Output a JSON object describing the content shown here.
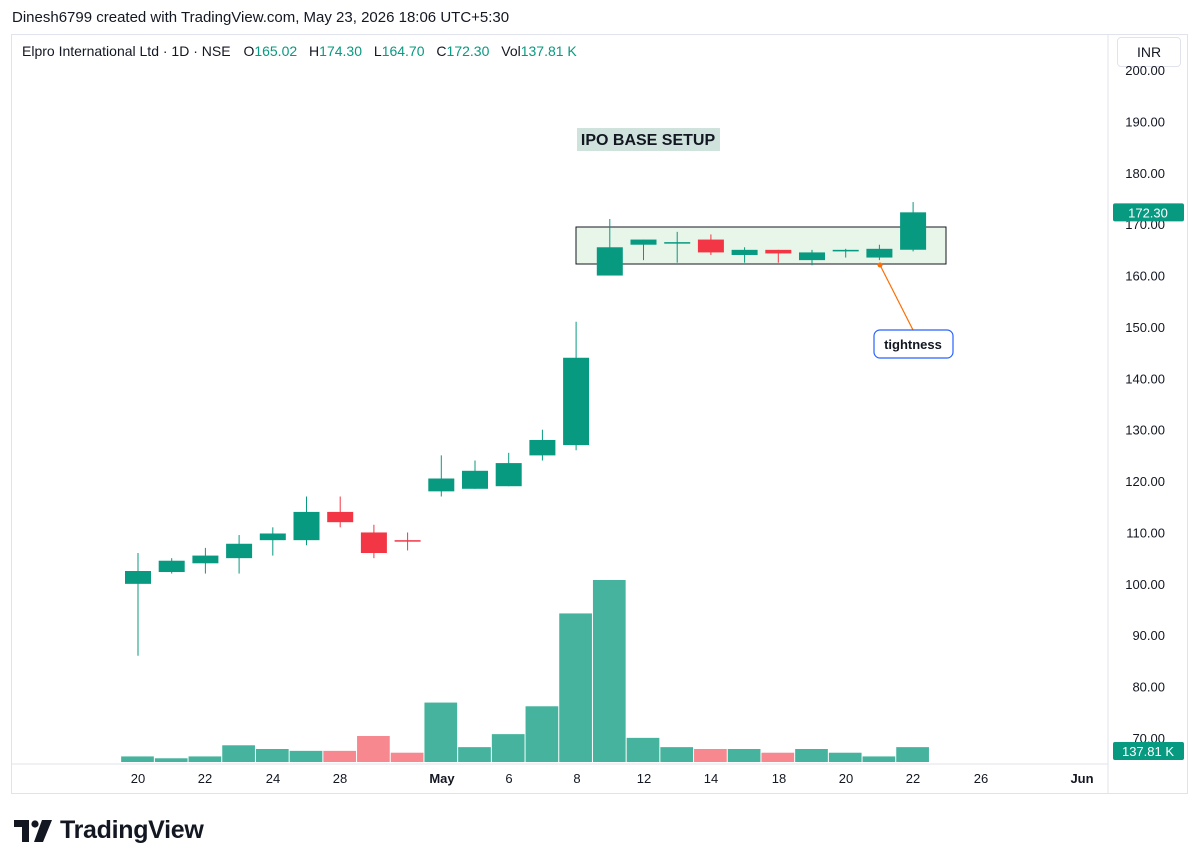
{
  "header": {
    "attribution": "Dinesh6799 created with TradingView.com, May 23, 2026 18:06 UTC+5:30"
  },
  "legend": {
    "symbol": "Elpro International Ltd · 1D · NSE",
    "o_label": "O",
    "o_value": "165.02",
    "h_label": "H",
    "h_value": "174.30",
    "l_label": "L",
    "l_value": "164.70",
    "c_label": "C",
    "c_value": "172.30",
    "vol_label": "Vol",
    "vol_value": "137.81 K"
  },
  "currency_button": "INR",
  "brand": {
    "name": "TradingView"
  },
  "colors": {
    "up": "#089981",
    "down": "#f23645",
    "vol_up": "#45b39d",
    "vol_down": "#f7888f",
    "box_fill": "#e8f5e9"
  },
  "chart_data": {
    "type": "candlestick",
    "y_ticks": [
      "200.00",
      "190.00",
      "180.00",
      "170.00",
      "160.00",
      "150.00",
      "140.00",
      "130.00",
      "120.00",
      "110.00",
      "100.00",
      "90.00",
      "80.00",
      "70.00"
    ],
    "x_ticks": [
      "20",
      "22",
      "24",
      "28",
      "May",
      "6",
      "8",
      "12",
      "14",
      "18",
      "20",
      "22",
      "26",
      "Jun"
    ],
    "ylim": [
      70,
      200
    ],
    "candles": [
      {
        "o": 100.0,
        "h": 106.0,
        "l": 86.0,
        "c": 102.5,
        "v": 3
      },
      {
        "o": 102.3,
        "h": 105.0,
        "l": 102.0,
        "c": 104.5,
        "v": 2
      },
      {
        "o": 104.0,
        "h": 107.0,
        "l": 102.0,
        "c": 105.5,
        "v": 3
      },
      {
        "o": 105.0,
        "h": 109.5,
        "l": 102.0,
        "c": 107.8,
        "v": 9
      },
      {
        "o": 108.5,
        "h": 111.0,
        "l": 105.5,
        "c": 109.8,
        "v": 7
      },
      {
        "o": 108.5,
        "h": 117.0,
        "l": 107.5,
        "c": 114.0,
        "v": 6
      },
      {
        "o": 114.0,
        "h": 117.0,
        "l": 111.0,
        "c": 112.0,
        "v": 6
      },
      {
        "o": 110.0,
        "h": 111.5,
        "l": 105.0,
        "c": 106.0,
        "v": 14
      },
      {
        "o": 108.5,
        "h": 110.0,
        "l": 106.5,
        "c": 108.3,
        "v": 5
      },
      {
        "o": 118.0,
        "h": 125.0,
        "l": 117.0,
        "c": 120.5,
        "v": 32
      },
      {
        "o": 118.5,
        "h": 124.0,
        "l": 118.5,
        "c": 122.0,
        "v": 8
      },
      {
        "o": 119.0,
        "h": 125.5,
        "l": 119.0,
        "c": 123.5,
        "v": 15
      },
      {
        "o": 125.0,
        "h": 130.0,
        "l": 124.0,
        "c": 128.0,
        "v": 30
      },
      {
        "o": 127.0,
        "h": 151.0,
        "l": 126.0,
        "c": 144.0,
        "v": 80
      },
      {
        "o": 160.0,
        "h": 171.0,
        "l": 160.0,
        "c": 165.5,
        "v": 98
      },
      {
        "o": 166.0,
        "h": 167.0,
        "l": 163.0,
        "c": 167.0,
        "v": 13
      },
      {
        "o": 166.5,
        "h": 168.5,
        "l": 162.5,
        "c": 166.5,
        "v": 8
      },
      {
        "o": 167.0,
        "h": 168.0,
        "l": 164.0,
        "c": 164.5,
        "v": 7
      },
      {
        "o": 164.0,
        "h": 165.5,
        "l": 162.5,
        "c": 165.0,
        "v": 7
      },
      {
        "o": 165.0,
        "h": 165.0,
        "l": 162.5,
        "c": 164.3,
        "v": 5
      },
      {
        "o": 163.0,
        "h": 165.0,
        "l": 162.0,
        "c": 164.5,
        "v": 7
      },
      {
        "o": 164.7,
        "h": 165.2,
        "l": 163.5,
        "c": 165.0,
        "v": 5
      },
      {
        "o": 163.5,
        "h": 166.0,
        "l": 163.0,
        "c": 165.2,
        "v": 3
      },
      {
        "o": 165.02,
        "h": 174.3,
        "l": 164.7,
        "c": 172.3,
        "v": 8
      }
    ],
    "last_price_label": "172.30",
    "last_volume_label": "137.81 K",
    "annotations": {
      "title": "IPO BASE SETUP",
      "callout": "tightness"
    }
  }
}
